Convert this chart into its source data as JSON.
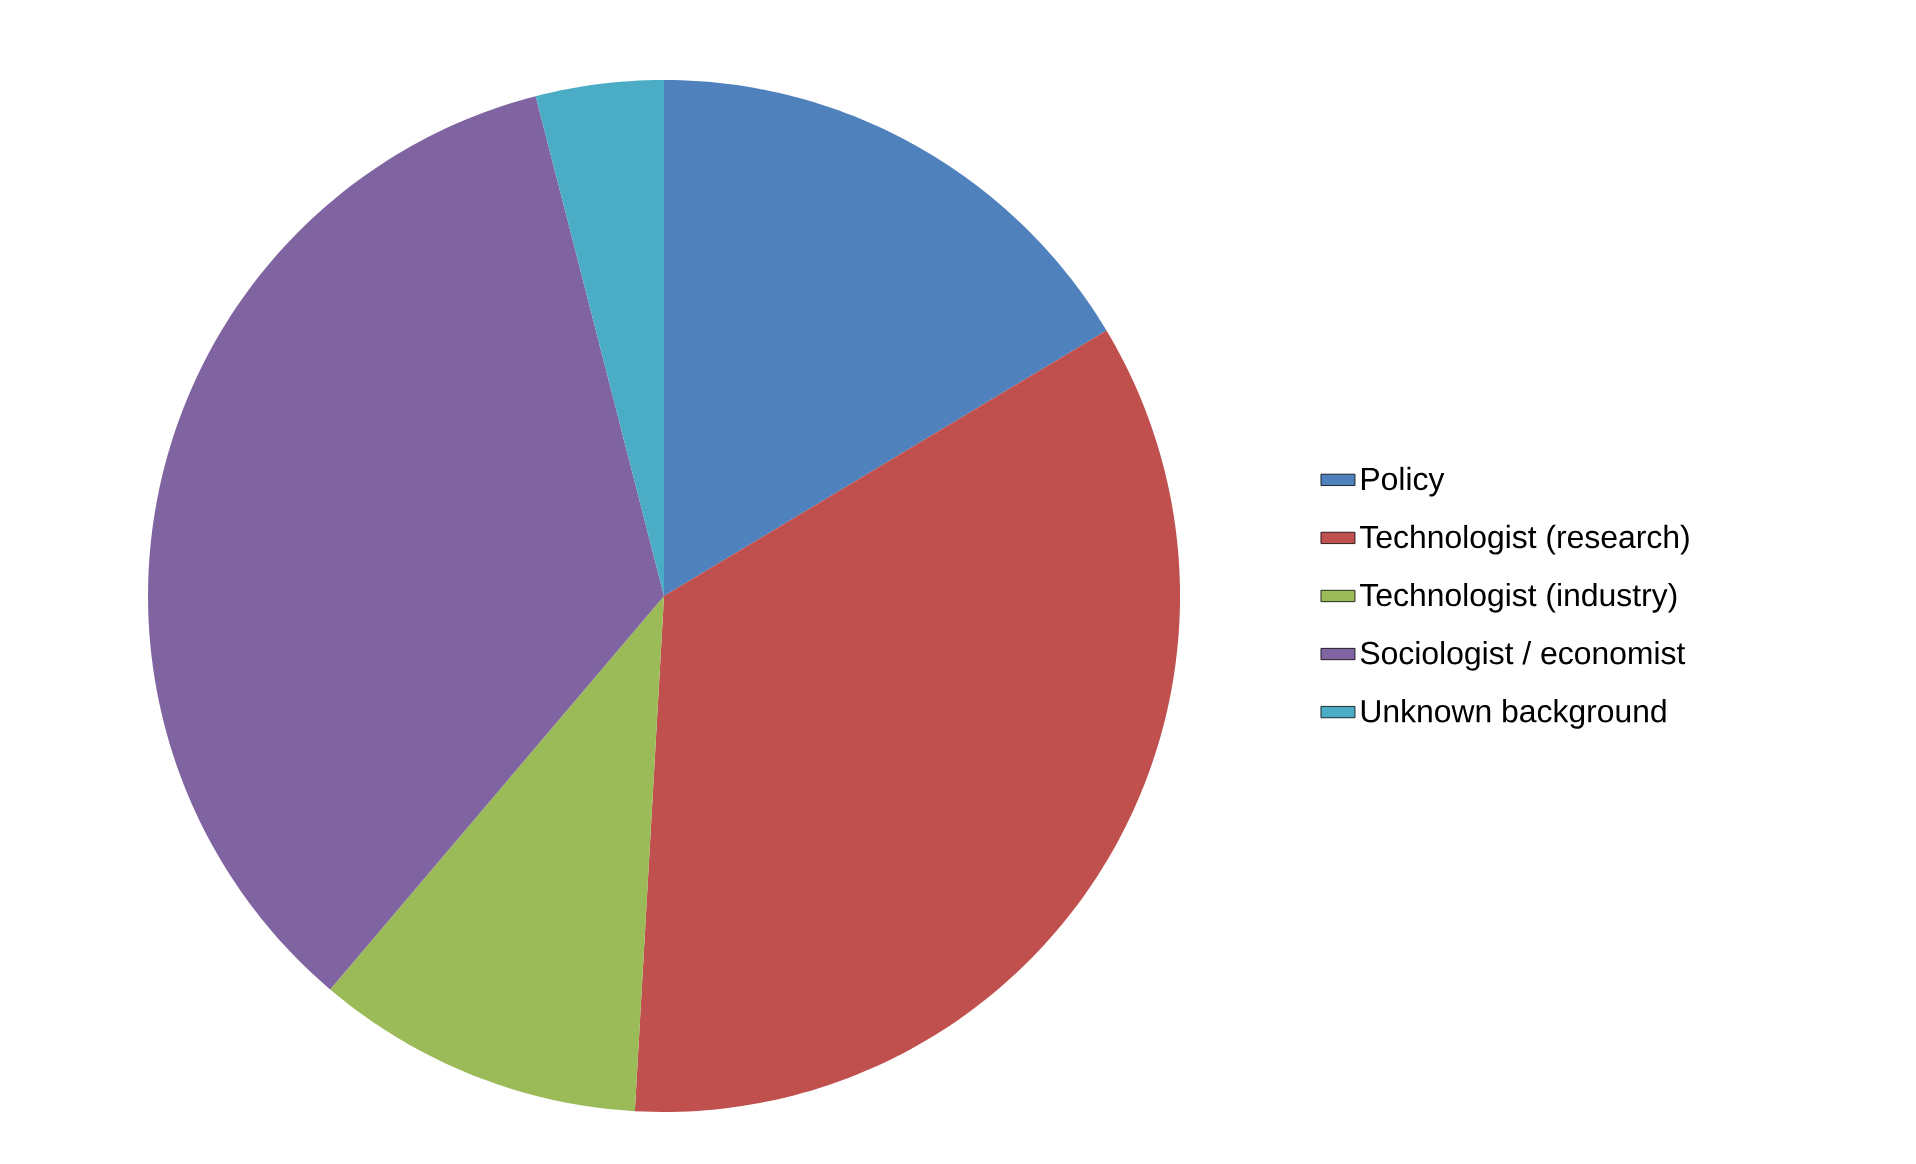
{
  "chart_data": {
    "type": "pie",
    "categories": [
      "Policy",
      "Technologist (research)",
      "Technologist (industry)",
      "Sociologist / economist",
      "Unknown background"
    ],
    "values": [
      16.4,
      34.5,
      10.3,
      34.8,
      4.0
    ],
    "colors": [
      "#4f81bd",
      "#c0504d",
      "#9bbb59",
      "#8064a2",
      "#4bacc6"
    ],
    "legend": "right"
  }
}
